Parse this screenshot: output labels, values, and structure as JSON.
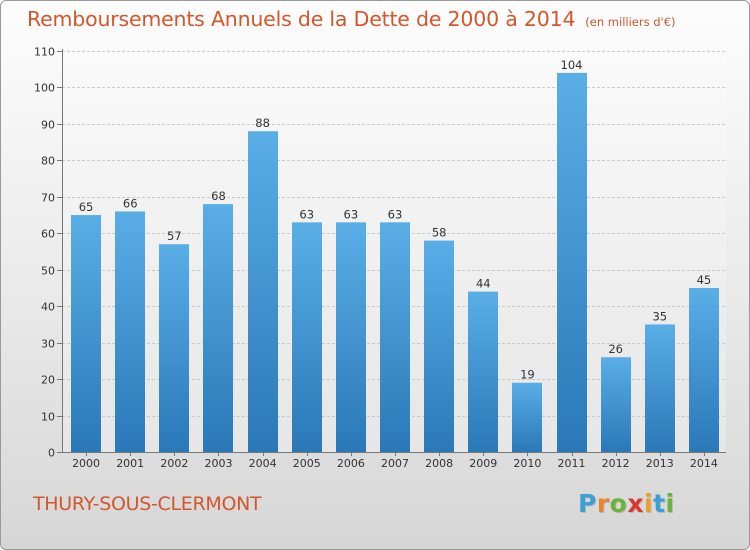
{
  "header": {
    "title": "Remboursements Annuels de la Dette de 2000 à 2014",
    "unit": "(en milliers d'€)"
  },
  "footer": {
    "commune": "THURY-SOUS-CLERMONT",
    "brand_letters": [
      "P",
      "r",
      "o",
      "x",
      "i",
      "t",
      "i"
    ],
    "brand_colors": [
      "#3aa0d6",
      "#e8842a",
      "#6ab23a",
      "#d8392b",
      "#e8a02a",
      "#3aa0d6",
      "#6ab23a"
    ]
  },
  "chart_data": {
    "type": "bar",
    "title": "Remboursements Annuels de la Dette de 2000 à 2014",
    "subtitle": "(en milliers d'€)",
    "xlabel": "",
    "ylabel": "",
    "categories": [
      "2000",
      "2001",
      "2002",
      "2003",
      "2004",
      "2005",
      "2006",
      "2007",
      "2008",
      "2009",
      "2010",
      "2011",
      "2012",
      "2013",
      "2014"
    ],
    "values": [
      65,
      66,
      57,
      68,
      88,
      63,
      63,
      63,
      58,
      44,
      19,
      104,
      26,
      35,
      45
    ],
    "value_labels": [
      "65",
      "66",
      "57",
      "68",
      "88",
      "63",
      "63",
      "63",
      "58",
      "44",
      "19",
      "104",
      "26",
      "35",
      "45"
    ],
    "ylim": [
      0,
      110
    ],
    "yticks": [
      "0",
      "10",
      "20",
      "30",
      "40",
      "50",
      "60",
      "70",
      "80",
      "90",
      "100",
      "110"
    ],
    "grid": true,
    "bar_color_top": "#5aaee6",
    "bar_color_bottom": "#2a78b8"
  }
}
